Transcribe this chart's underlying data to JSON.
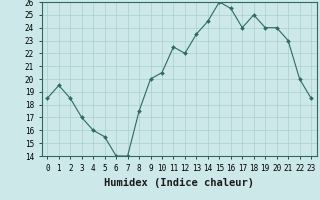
{
  "x": [
    0,
    1,
    2,
    3,
    4,
    5,
    6,
    7,
    8,
    9,
    10,
    11,
    12,
    13,
    14,
    15,
    16,
    17,
    18,
    19,
    20,
    21,
    22,
    23
  ],
  "y": [
    18.5,
    19.5,
    18.5,
    17.0,
    16.0,
    15.5,
    14.0,
    14.0,
    17.5,
    20.0,
    20.5,
    22.5,
    22.0,
    23.5,
    24.5,
    26.0,
    25.5,
    24.0,
    25.0,
    24.0,
    24.0,
    23.0,
    20.0,
    18.5
  ],
  "xlabel": "Humidex (Indice chaleur)",
  "ylim": [
    14,
    26
  ],
  "xlim": [
    -0.5,
    23.5
  ],
  "yticks": [
    14,
    15,
    16,
    17,
    18,
    19,
    20,
    21,
    22,
    23,
    24,
    25,
    26
  ],
  "xticks": [
    0,
    1,
    2,
    3,
    4,
    5,
    6,
    7,
    8,
    9,
    10,
    11,
    12,
    13,
    14,
    15,
    16,
    17,
    18,
    19,
    20,
    21,
    22,
    23
  ],
  "line_color": "#2d6b60",
  "marker_color": "#2d6b60",
  "bg_color": "#cce8e8",
  "grid_color": "#aacfcf",
  "tick_label_fontsize": 5.5,
  "xlabel_fontsize": 7.5
}
